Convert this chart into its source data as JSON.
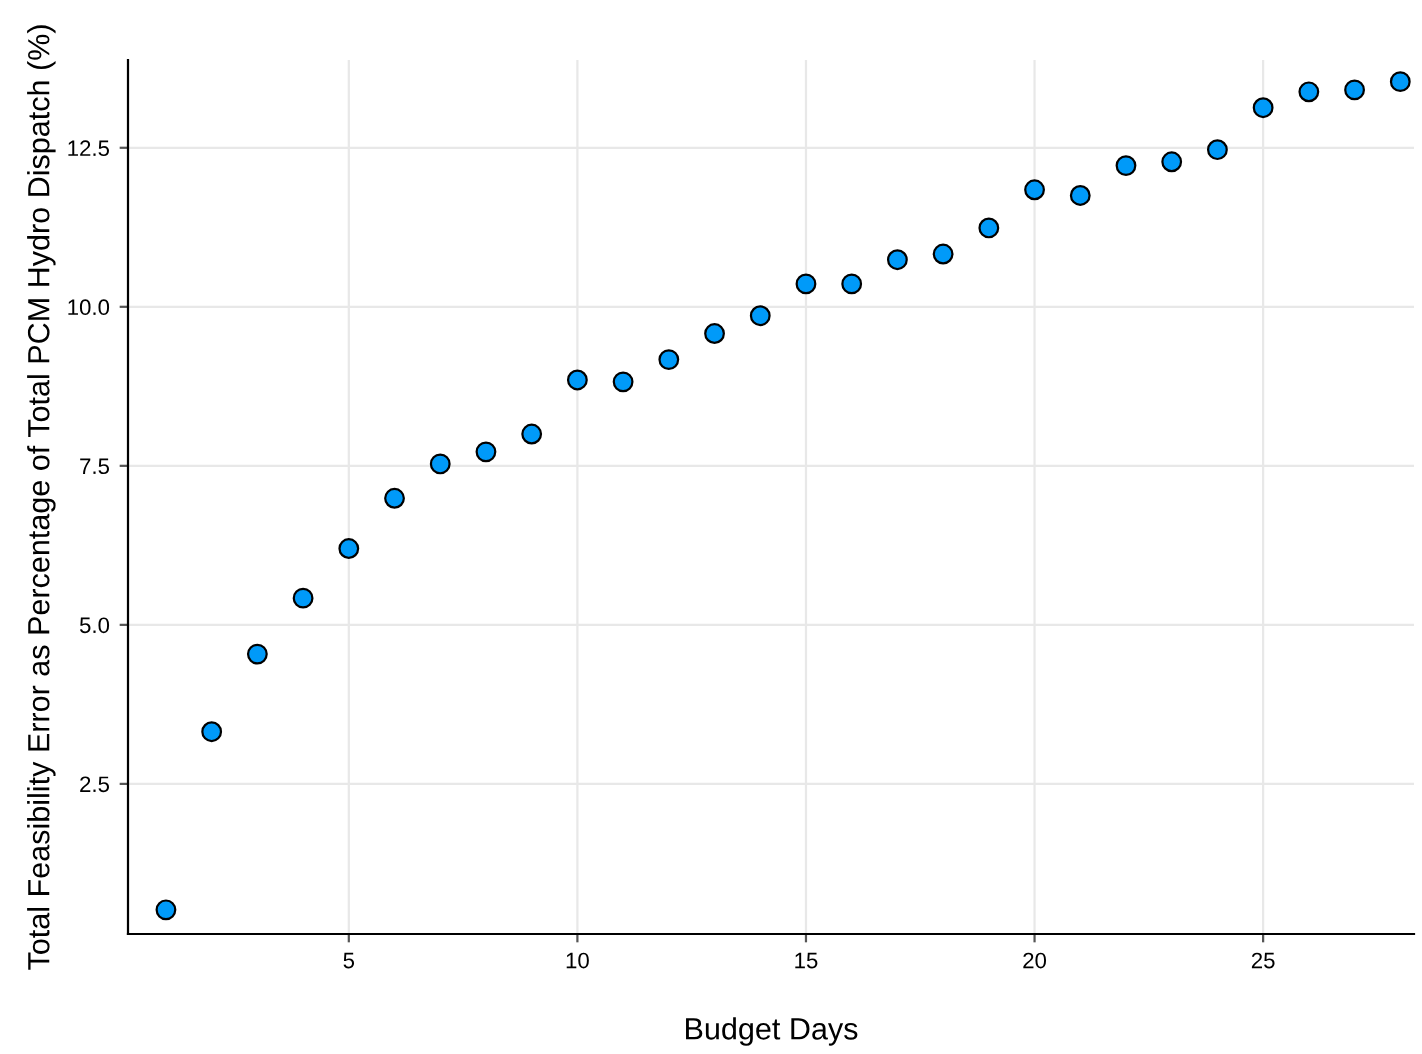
{
  "chart_data": {
    "type": "scatter",
    "xlabel": "Budget Days",
    "ylabel": "Total Feasibility Error as Percentage of Total PCM Hydro Dispatch (%)",
    "x": [
      1,
      2,
      3,
      4,
      5,
      6,
      7,
      8,
      9,
      10,
      11,
      12,
      13,
      14,
      15,
      16,
      17,
      18,
      19,
      20,
      21,
      22,
      23,
      24,
      25,
      26,
      27,
      28
    ],
    "series": [
      {
        "color": "#009af9",
        "values": [
          0.52,
          3.32,
          4.54,
          5.42,
          6.2,
          6.99,
          7.53,
          7.72,
          8.0,
          8.85,
          8.82,
          9.17,
          9.58,
          9.86,
          10.36,
          10.36,
          10.74,
          10.83,
          11.24,
          11.84,
          11.75,
          12.22,
          12.28,
          12.47,
          13.13,
          13.38,
          13.41,
          13.54
        ]
      }
    ],
    "xlim": [
      0.17,
      28.3
    ],
    "ylim": [
      0.14,
      13.88
    ],
    "xticks": [
      5,
      10,
      15,
      20,
      25
    ],
    "yticks": [
      2.5,
      {
        "value": 5,
        "label": "5.0"
      },
      7.5,
      {
        "value": 10,
        "label": "10.0"
      },
      12.5
    ],
    "grid": true,
    "marker": "circle"
  }
}
